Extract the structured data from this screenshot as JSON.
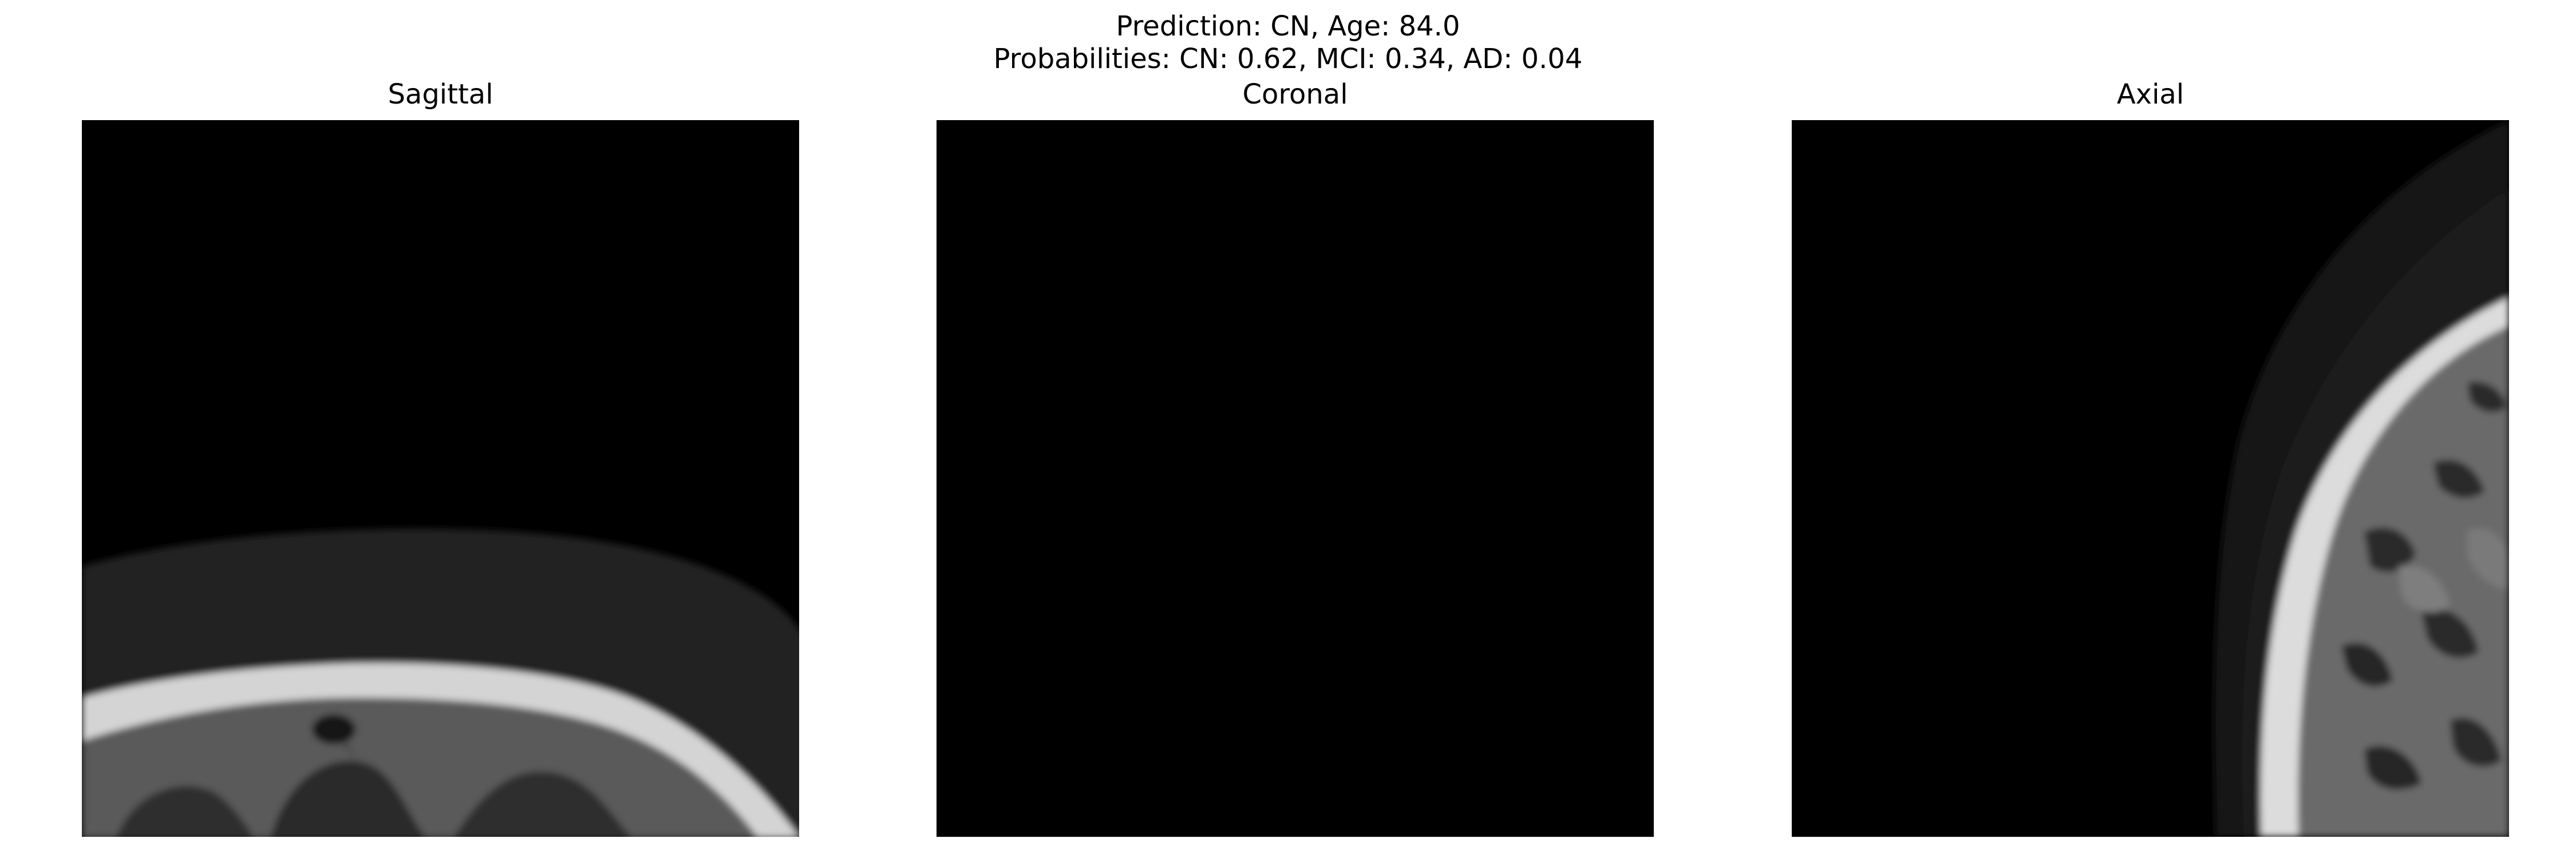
{
  "figure": {
    "suptitle_line1": "Prediction: CN, Age: 84.0",
    "suptitle_line2": "Probabilities: CN: 0.62, MCI: 0.34, AD: 0.04"
  },
  "panels": [
    {
      "title": "Sagittal"
    },
    {
      "title": "Coronal"
    },
    {
      "title": "Axial"
    }
  ],
  "colormap": "gray"
}
